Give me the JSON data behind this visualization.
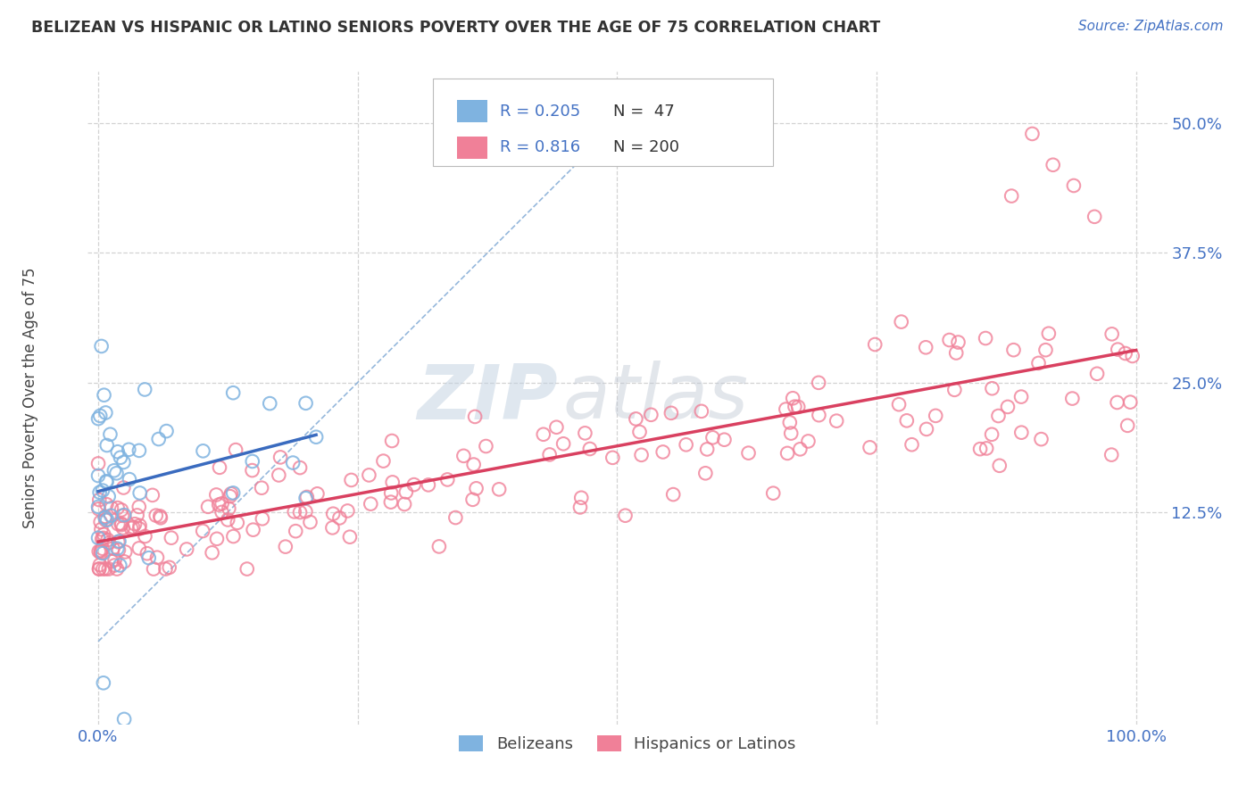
{
  "title": "BELIZEAN VS HISPANIC OR LATINO SENIORS POVERTY OVER THE AGE OF 75 CORRELATION CHART",
  "source": "Source: ZipAtlas.com",
  "ylabel": "Seniors Poverty Over the Age of 75",
  "watermark_zip": "ZIP",
  "watermark_atlas": "atlas",
  "legend": {
    "belizean_R": 0.205,
    "belizean_N": 47,
    "hispanic_R": 0.816,
    "hispanic_N": 200
  },
  "belizean_color": "#7fb3e0",
  "belizean_line_color": "#3a6bbf",
  "hispanic_color": "#f08098",
  "hispanic_line_color": "#d94060",
  "diag_line_color": "#8ab0d8",
  "background_color": "#ffffff",
  "grid_color": "#c8c8c8",
  "title_color": "#333333",
  "axis_label_color": "#444444",
  "tick_color": "#4472c4",
  "source_color": "#4472c4",
  "ylim_low": -0.08,
  "ylim_high": 0.55,
  "xlim_low": -0.01,
  "xlim_high": 1.03
}
